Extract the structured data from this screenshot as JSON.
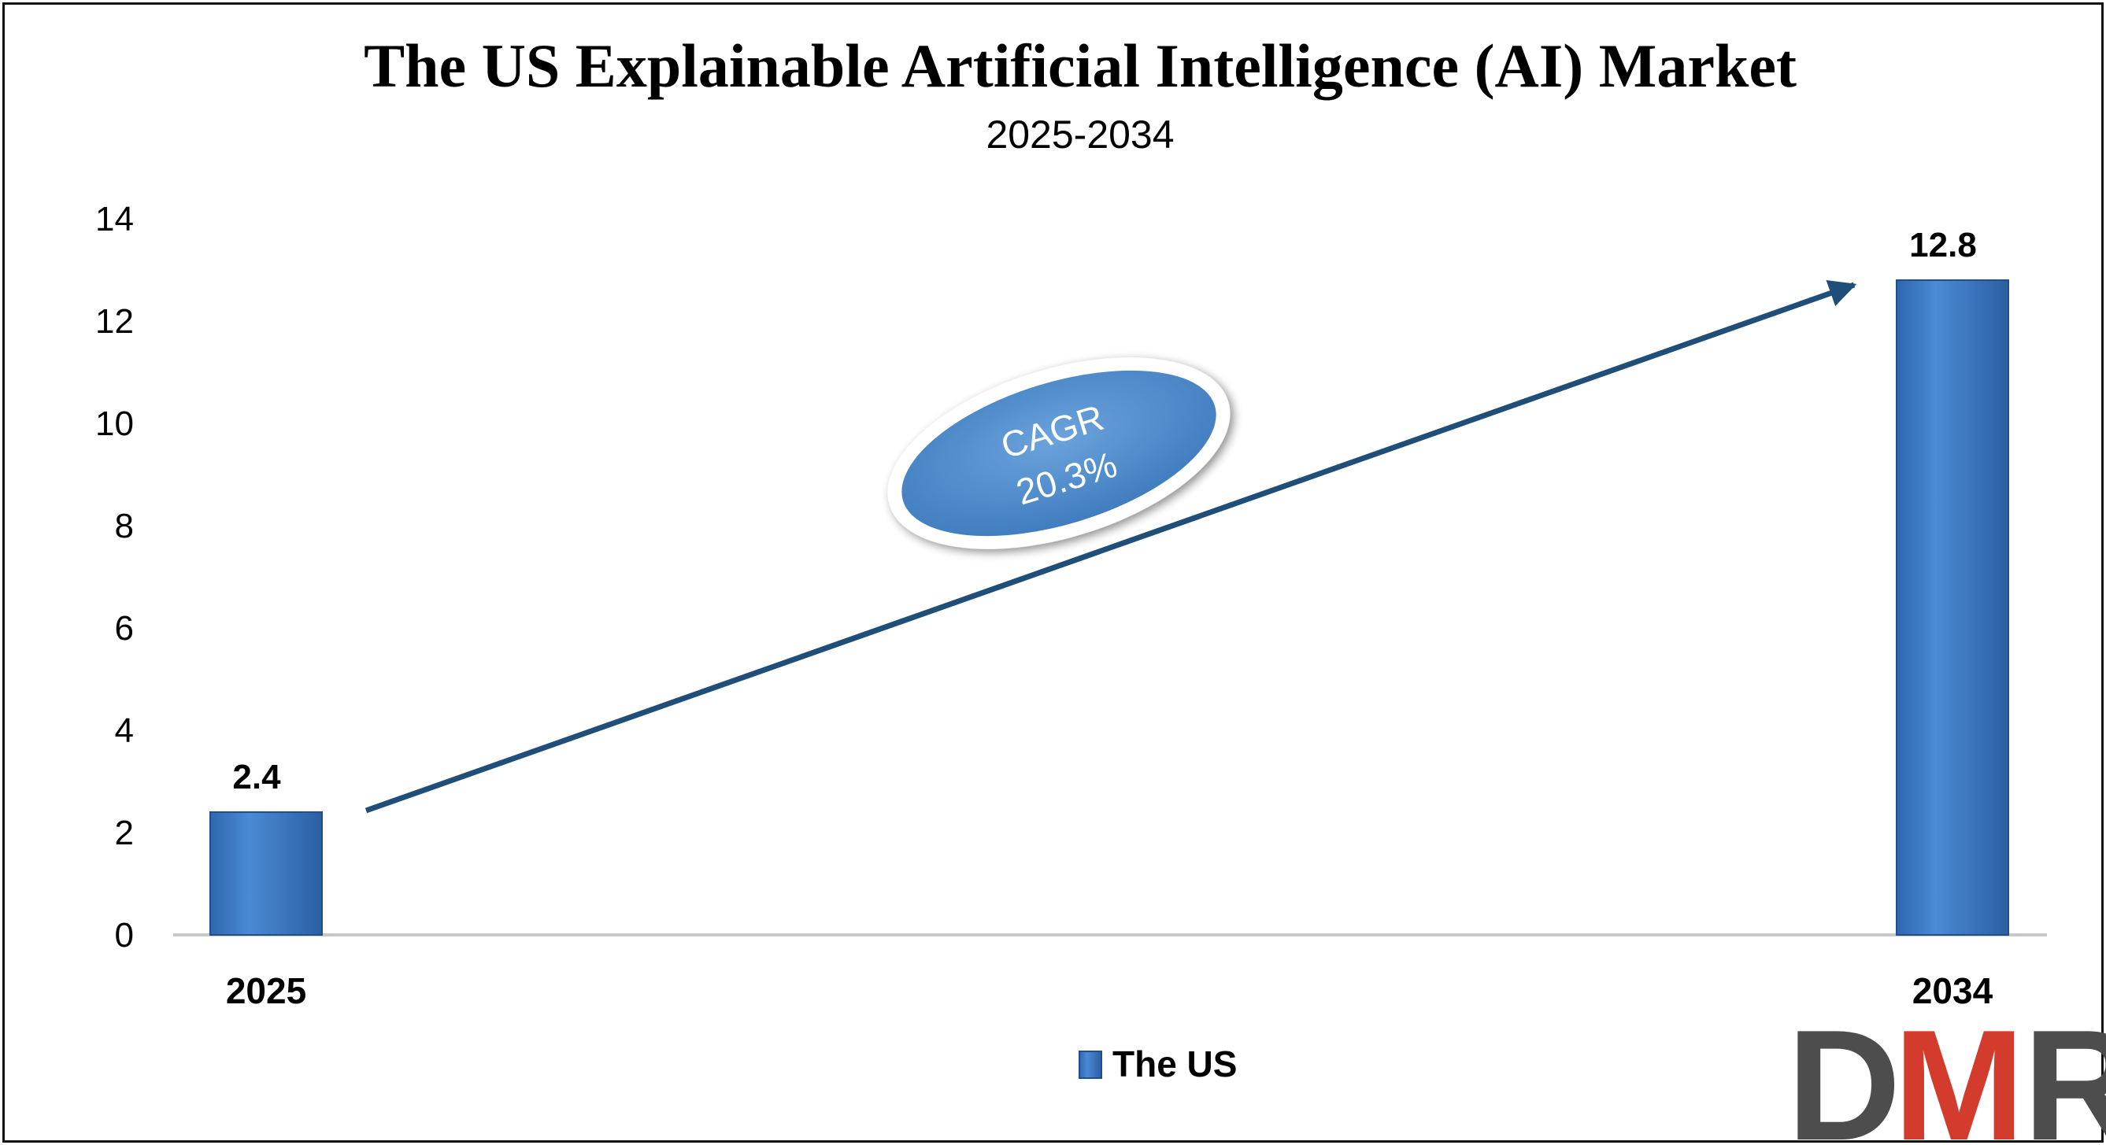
{
  "chart_data": {
    "type": "bar",
    "title": "The US Explainable Artificial Intelligence (AI) Market",
    "subtitle": "2025-2034",
    "categories": [
      "2025",
      "2034"
    ],
    "series": [
      {
        "name": "The US",
        "values": [
          2.4,
          12.8
        ]
      }
    ],
    "data_labels": [
      "2.4",
      "12.8"
    ],
    "ylim": [
      0,
      14
    ],
    "yticks": [
      0,
      2,
      4,
      6,
      8,
      10,
      12,
      14
    ],
    "grid": false,
    "legend": "bottom-center",
    "annotation": {
      "line1": "CAGR",
      "line2": "20.3%"
    }
  },
  "colors": {
    "bar": "#3a7ac8",
    "bar_edge": "#1f4f8f",
    "arrow": "#1f4e79",
    "ellipse": "#4f8fd0",
    "axis": "#c8c8c8",
    "logo_dark": "#4d4d4d",
    "logo_red": "#d33b2c"
  },
  "logo": {
    "text": "DMR",
    "letters": [
      "D",
      "M",
      "R"
    ]
  }
}
